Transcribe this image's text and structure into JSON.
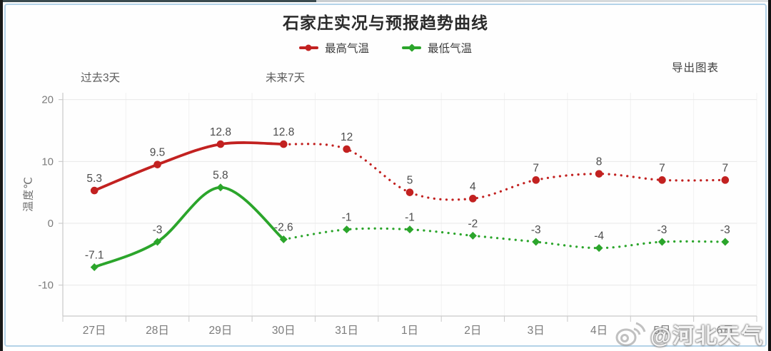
{
  "title": "石家庄实况与预报趋势曲线",
  "legend": {
    "items": [
      {
        "label": "最高气温",
        "color": "#c22120"
      },
      {
        "label": "最低气温",
        "color": "#2ba52b"
      }
    ]
  },
  "toolbar": {
    "export_label": "导出图表"
  },
  "annotations": {
    "past_label": "过去3天",
    "future_label": "未来7天"
  },
  "watermark": {
    "handle": "@河北天气",
    "icon": "weibo-icon"
  },
  "chart_data": {
    "type": "line",
    "title": "石家庄实况与预报趋势曲线",
    "x_categories": [
      "27日",
      "28日",
      "29日",
      "30日",
      "31日",
      "1日",
      "2日",
      "3日",
      "4日",
      "5日",
      "6日"
    ],
    "series": [
      {
        "name": "最高气温",
        "color": "#c22120",
        "marker": "circle",
        "values": [
          5.3,
          9.5,
          12.8,
          12.8,
          12,
          5,
          4,
          7,
          8,
          7,
          7
        ],
        "labels": [
          "5.3",
          "9.5",
          "12.8",
          "12.8",
          "12",
          "5",
          "4",
          "7",
          "8",
          "7",
          "7"
        ],
        "solid_points": 4
      },
      {
        "name": "最低气温",
        "color": "#2ba52b",
        "marker": "diamond",
        "values": [
          -7.1,
          -3,
          5.8,
          -2.6,
          -1,
          -1,
          -2,
          -3,
          -4,
          -3,
          -3
        ],
        "labels": [
          "-7.1",
          "-3",
          "5.8",
          "-2.6",
          "-1",
          "-1",
          "-2",
          "-3",
          "-4",
          "-3",
          "-3"
        ],
        "solid_points": 4
      }
    ],
    "ylabel": "温度℃",
    "yticks": [
      20,
      10,
      0,
      -10
    ],
    "ylim": [
      -15,
      21
    ],
    "grid": true,
    "legend_position": "top",
    "style_note": "first 4 points solid (past), remaining 7 dotted (forecast)"
  }
}
